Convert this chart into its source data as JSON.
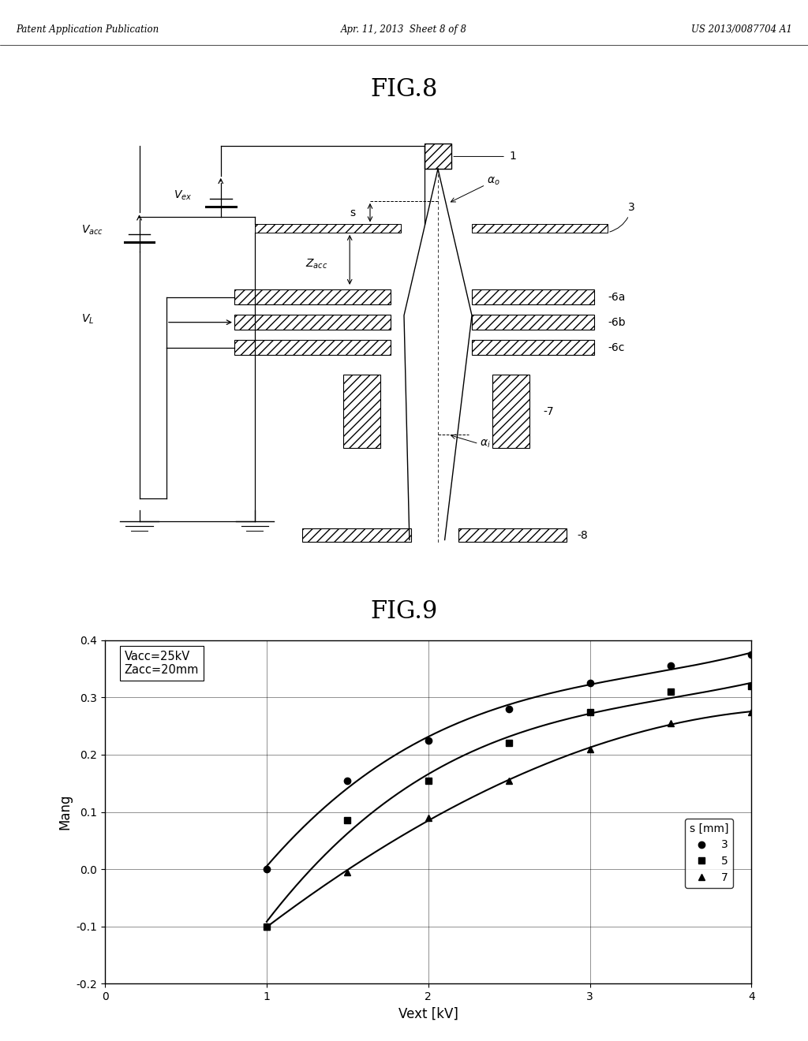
{
  "header_left": "Patent Application Publication",
  "header_center": "Apr. 11, 2013  Sheet 8 of 8",
  "header_right": "US 2013/0087704 A1",
  "fig8_title": "FIG.8",
  "fig9_title": "FIG.9",
  "annotation_text": "Vacc=25kV\nZacc=20mm",
  "xlabel": "Vext [kV]",
  "ylabel": "Mang",
  "xlim": [
    0,
    4
  ],
  "ylim": [
    -0.2,
    0.4
  ],
  "xticks": [
    0,
    1,
    2,
    3,
    4
  ],
  "yticks": [
    -0.2,
    -0.1,
    0.0,
    0.1,
    0.2,
    0.3,
    0.4
  ],
  "series": [
    {
      "label": "3",
      "x": [
        1.0,
        1.5,
        2.0,
        2.5,
        3.0,
        3.5,
        4.0
      ],
      "y": [
        0.0,
        0.155,
        0.225,
        0.28,
        0.325,
        0.355,
        0.375
      ],
      "marker": "o",
      "color": "black"
    },
    {
      "label": "5",
      "x": [
        1.0,
        1.5,
        2.0,
        2.5,
        3.0,
        3.5,
        4.0
      ],
      "y": [
        -0.1,
        0.085,
        0.155,
        0.22,
        0.275,
        0.31,
        0.32
      ],
      "marker": "s",
      "color": "black"
    },
    {
      "label": "7",
      "x": [
        1.0,
        1.5,
        2.0,
        2.5,
        3.0,
        3.5,
        4.0
      ],
      "y": [
        -0.1,
        -0.005,
        0.09,
        0.155,
        0.21,
        0.255,
        0.275
      ],
      "marker": "^",
      "color": "black"
    }
  ],
  "legend_title": "s [mm]",
  "background_color": "white"
}
